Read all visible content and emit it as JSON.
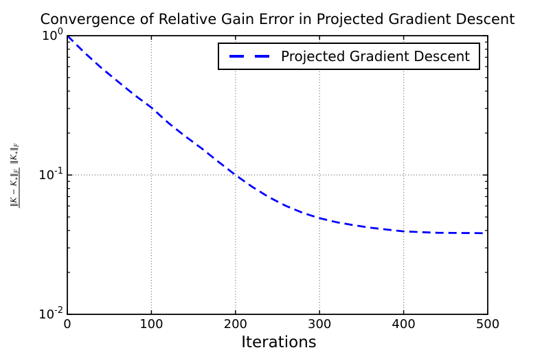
{
  "figure": {
    "background": "#ffffff"
  },
  "chart_data": {
    "type": "line",
    "title": "Convergence of Relative Gain Error in Projected Gradient Descent",
    "xlabel": "Iterations",
    "ylabel_text": "||K - K*||_F / ||K*||_F",
    "ylabel_parts": {
      "num": {
        "a": "‖K − K",
        "b": "∗",
        "c": "‖",
        "d": "F"
      },
      "den": {
        "a": "‖K",
        "b": "∗",
        "c": "‖",
        "d": "F"
      }
    },
    "xlim": [
      0,
      500
    ],
    "ylim": [
      0.01,
      1
    ],
    "yscale": "log",
    "grid": true,
    "legend_position": "upper right",
    "x_ticks": [
      0,
      100,
      200,
      300,
      400,
      500
    ],
    "y_ticks": [
      {
        "base": "10",
        "exp": "0",
        "value": 1
      },
      {
        "base": "10",
        "exp": "-1",
        "value": 0.1
      },
      {
        "base": "10",
        "exp": "-2",
        "value": 0.01
      }
    ],
    "x_gridlines": [
      100,
      200,
      300,
      400
    ],
    "y_gridlines": [
      0.1
    ],
    "x": [
      0,
      20,
      40,
      60,
      80,
      100,
      120,
      140,
      160,
      180,
      200,
      220,
      240,
      260,
      280,
      300,
      320,
      340,
      360,
      380,
      400,
      420,
      440,
      460,
      480,
      500
    ],
    "series": [
      {
        "name": "Projected Gradient Descent",
        "color": "#0000ff",
        "linestyle": "dashed",
        "y": [
          1.0,
          0.76,
          0.59,
          0.47,
          0.375,
          0.305,
          0.237,
          0.19,
          0.155,
          0.124,
          0.1,
          0.0822,
          0.0692,
          0.06,
          0.0535,
          0.049,
          0.0459,
          0.0437,
          0.0419,
          0.0406,
          0.0394,
          0.0389,
          0.0385,
          0.0384,
          0.0383,
          0.0382
        ]
      }
    ]
  }
}
